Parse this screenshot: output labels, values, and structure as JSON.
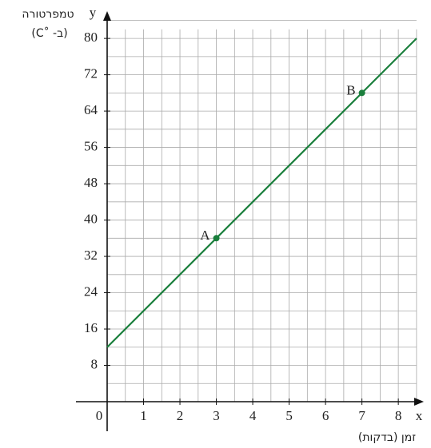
{
  "chart_data": {
    "type": "line",
    "y_axis_name": "y",
    "x_axis_name": "x",
    "y_label": "טמפרטורה",
    "y_unit": "(ב- ˚C)",
    "x_label": "זמן (בדקות)",
    "x": [
      0,
      8.5
    ],
    "series": [
      {
        "values": [
          12,
          80
        ],
        "color": "#1a7f3c"
      }
    ],
    "points": [
      {
        "label": "A",
        "x": 3,
        "y": 36
      },
      {
        "label": "B",
        "x": 7,
        "y": 68
      }
    ],
    "xlim": [
      0,
      8.7
    ],
    "ylim": [
      0,
      86
    ],
    "xticks": [
      0,
      1,
      2,
      3,
      4,
      5,
      6,
      7,
      8
    ],
    "yticks": [
      8,
      16,
      24,
      32,
      40,
      48,
      56,
      64,
      72,
      80
    ],
    "grid": true,
    "minor_grid": {
      "x": 0.5,
      "y": 4
    }
  }
}
